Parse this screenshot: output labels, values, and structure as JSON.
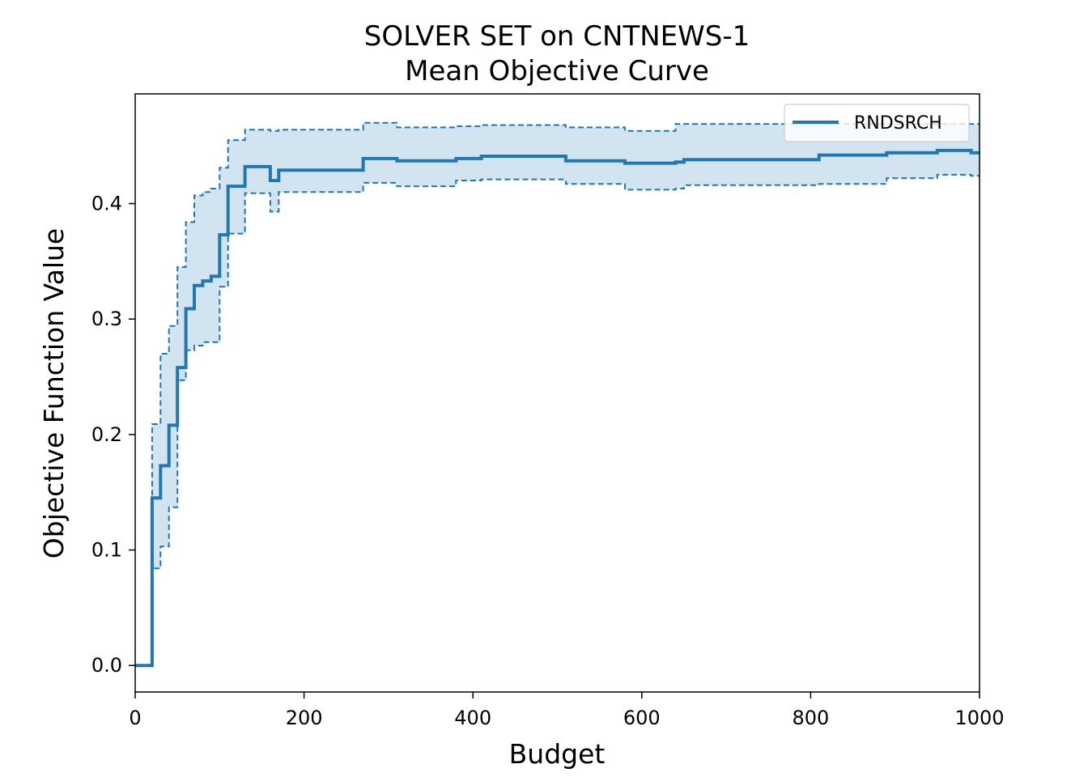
{
  "chart_data": {
    "type": "line",
    "title": "SOLVER SET on CNTNEWS-1",
    "subtitle": "Mean Objective Curve",
    "xlabel": "Budget",
    "ylabel": "Objective Function Value",
    "xlim": [
      0,
      1000
    ],
    "ylim": [
      -0.023,
      0.495
    ],
    "xticks": [
      0,
      200,
      400,
      600,
      800,
      1000
    ],
    "xtick_labels": [
      "0",
      "200",
      "400",
      "600",
      "800",
      "1000"
    ],
    "yticks": [
      0.0,
      0.1,
      0.2,
      0.3,
      0.4
    ],
    "ytick_labels": [
      "0.0",
      "0.1",
      "0.2",
      "0.3",
      "0.4"
    ],
    "grid": false,
    "legend_position": "top-right",
    "colors": {
      "line": "#1f77b4",
      "band": "#1f77b4"
    },
    "series": [
      {
        "name": "RNDSRCH",
        "style": "step",
        "x": [
          0,
          20,
          30,
          40,
          50,
          60,
          70,
          80,
          90,
          100,
          110,
          130,
          160,
          170,
          270,
          310,
          380,
          410,
          510,
          580,
          640,
          650,
          810,
          890,
          950,
          990,
          1000
        ],
        "mean": [
          0.0,
          0.145,
          0.173,
          0.208,
          0.258,
          0.309,
          0.329,
          0.333,
          0.337,
          0.373,
          0.415,
          0.432,
          0.42,
          0.429,
          0.439,
          0.437,
          0.439,
          0.441,
          0.437,
          0.435,
          0.436,
          0.438,
          0.442,
          0.444,
          0.446,
          0.444,
          0.444
        ],
        "upper": [
          0.0,
          0.209,
          0.27,
          0.294,
          0.345,
          0.384,
          0.407,
          0.41,
          0.413,
          0.431,
          0.455,
          0.464,
          0.463,
          0.464,
          0.47,
          0.466,
          0.467,
          0.468,
          0.466,
          0.463,
          0.469,
          0.469,
          0.469,
          0.469,
          0.469,
          0.469,
          0.469
        ],
        "lower": [
          0.0,
          0.084,
          0.103,
          0.137,
          0.247,
          0.273,
          0.277,
          0.28,
          0.28,
          0.328,
          0.374,
          0.409,
          0.393,
          0.41,
          0.418,
          0.415,
          0.42,
          0.421,
          0.417,
          0.412,
          0.413,
          0.416,
          0.417,
          0.422,
          0.425,
          0.424,
          0.424
        ]
      }
    ]
  }
}
